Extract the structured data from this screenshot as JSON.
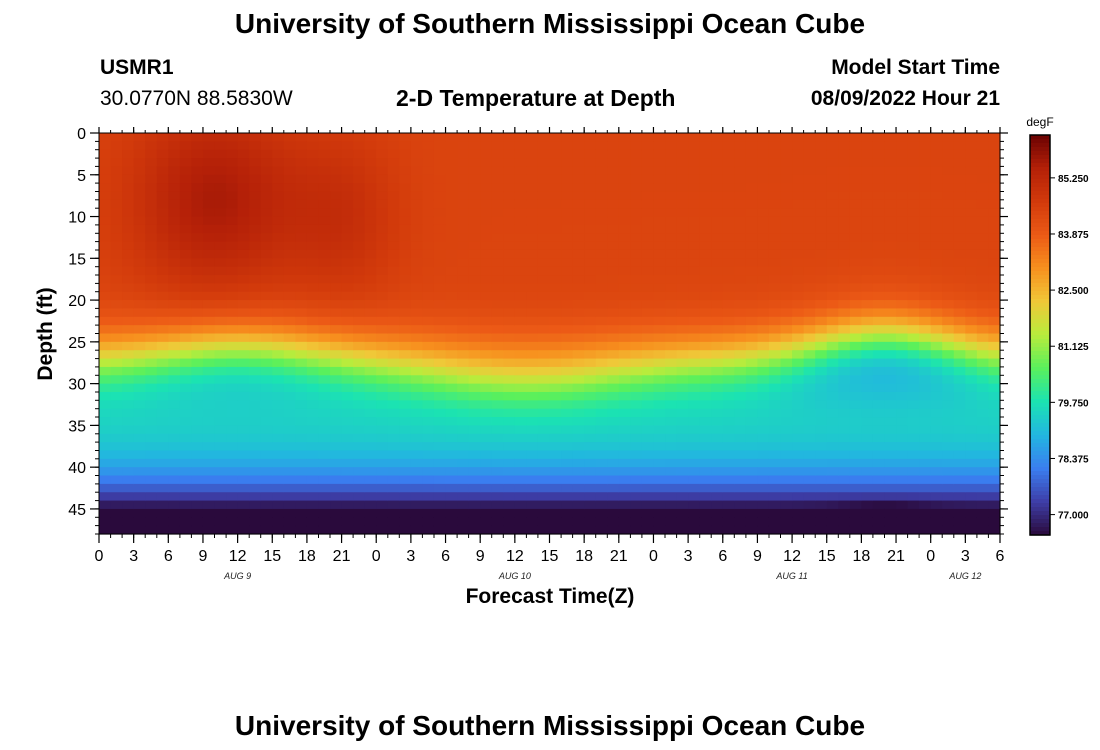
{
  "page": {
    "title": "University of Southern Mississippi Ocean Cube",
    "footer_title": "University of Southern Mississippi Ocean Cube"
  },
  "header": {
    "station_id": "USMR1",
    "coordinates": "30.0770N  88.5830W",
    "plot_title": "2-D Temperature at Depth",
    "model_start_label": "Model Start Time",
    "model_start_value": "08/09/2022 Hour 21"
  },
  "chart_data": {
    "type": "heatmap",
    "title": "2-D Temperature at Depth",
    "xlabel": "Forecast Time(Z)",
    "ylabel": "Depth (ft)",
    "x_tick_labels": [
      "0",
      "3",
      "6",
      "9",
      "12",
      "15",
      "18",
      "21",
      "0",
      "3",
      "6",
      "9",
      "12",
      "15",
      "18",
      "21",
      "0",
      "3",
      "6",
      "9",
      "12",
      "15",
      "18",
      "21",
      "0",
      "3",
      "6"
    ],
    "x_range_hours": [
      0,
      78
    ],
    "date_labels": [
      {
        "label": "AUG 9",
        "hour": 12
      },
      {
        "label": "AUG 10",
        "hour": 36
      },
      {
        "label": "AUG 11",
        "hour": 60
      },
      {
        "label": "AUG 12",
        "hour": 75
      }
    ],
    "y_tick_labels": [
      "0",
      "5",
      "10",
      "15",
      "20",
      "25",
      "30",
      "35",
      "40",
      "45"
    ],
    "y_tick_values": [
      0,
      5,
      10,
      15,
      20,
      25,
      30,
      35,
      40,
      45
    ],
    "ylim": [
      0,
      48
    ],
    "y_inverted": true,
    "colorbar": {
      "unit": "degF",
      "min": 76.5,
      "max": 86.3,
      "tick_labels": [
        "85.250",
        "83.875",
        "82.500",
        "81.125",
        "79.750",
        "78.375",
        "77.000"
      ],
      "tick_values": [
        85.25,
        83.875,
        82.5,
        81.125,
        79.75,
        78.375,
        77.0
      ],
      "palette": [
        "#2a0a3c",
        "#3e3ea8",
        "#3a7ef0",
        "#22b6e0",
        "#1be3b2",
        "#5af05c",
        "#b8ec3c",
        "#f0c838",
        "#f7901e",
        "#ec5a16",
        "#d23a0b",
        "#b42008",
        "#6b0202"
      ]
    },
    "field_description": "Warm mixed layer ~84-85.5 degF from surface to ~25 ft with warm cores near hours 6-15 and 18-21; thermocline 25-32 ft; cooler water 78-80 degF below 35 ft, coldest ~77 degF near 47 ft around hour 68"
  }
}
